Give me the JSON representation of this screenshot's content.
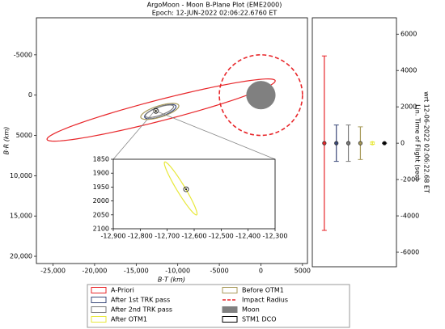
{
  "chart_data": [
    {
      "type": "ellipse",
      "title": "ArgoMoon - Moon B-Plane Plot (EME2000)",
      "subtitle": "Epoch: 12-JUN-2022 02:06:22.6760 ET",
      "xlabel": "B·T (km)",
      "ylabel": "B·R (km)",
      "y_inverted": true,
      "xlim": [
        -27000,
        5600
      ],
      "ylim": [
        -9600,
        20900
      ],
      "xticks": [
        {
          "value": -25000,
          "label": "-25,000"
        },
        {
          "value": -20000,
          "label": "-20,000"
        },
        {
          "value": -15000,
          "label": "-15,000"
        },
        {
          "value": -10000,
          "label": "-10,000"
        },
        -5000,
        0,
        5000
      ],
      "yticks": [
        -5000,
        0,
        5000,
        {
          "value": 10000,
          "label": "10,000"
        },
        {
          "value": 15000,
          "label": "15,000"
        },
        {
          "value": 20000,
          "label": "20,000"
        }
      ],
      "legend": "below",
      "series": [
        {
          "name": "A-Priori",
          "color": "#e8262a",
          "center": [
            -12000,
            1850
          ],
          "axes": [
            14200,
            1300
          ],
          "angle": -14.9
        },
        {
          "name": "After 1st TRK pass",
          "color": "#3b4a7a",
          "center": [
            -12100,
            2050
          ],
          "axes": [
            2000,
            600
          ],
          "angle": -20
        },
        {
          "name": "After 2nd TRK pass",
          "color": "#7a7a7a",
          "center": [
            -12200,
            2000
          ],
          "axes": [
            1800,
            500
          ],
          "angle": -20
        },
        {
          "name": "After OTM1",
          "color": "#e8e83a",
          "center": [
            -12650,
            1955
          ],
          "axes": [
            112,
            15
          ],
          "angle": 58
        },
        {
          "name": "Before OTM1",
          "color": "#a89a5a",
          "center": [
            -12160,
            2020
          ],
          "axes": [
            2400,
            700
          ],
          "angle": -18
        },
        {
          "name": "Impact Radius",
          "color": "#e8262a",
          "center": [
            0,
            0
          ],
          "radius": 5000,
          "dashed": true
        },
        {
          "name": "Moon",
          "color": "#808080",
          "center": [
            0,
            0
          ],
          "radius": 1737,
          "filled": true
        },
        {
          "name": "STM1 DCO",
          "color": "#000000",
          "center": [
            -12630,
            1958
          ]
        }
      ]
    },
    {
      "type": "ellipse",
      "y_inverted": true,
      "xlim": [
        -12900,
        -12300
      ],
      "ylim": [
        1850,
        2100
      ],
      "xticks": [
        {
          "value": -12900,
          "label": "-12,900"
        },
        {
          "value": -12800,
          "label": "-12,800"
        },
        {
          "value": -12700,
          "label": "-12,700"
        },
        {
          "value": -12600,
          "label": "-12,600"
        },
        {
          "value": -12500,
          "label": "-12,500"
        },
        {
          "value": -12400,
          "label": "-12,400"
        },
        {
          "value": -12300,
          "label": "-12,300"
        }
      ],
      "yticks": [
        1850,
        1900,
        1950,
        2000,
        2050,
        2100
      ],
      "series": [
        {
          "color": "#e8e83a",
          "center": [
            -12650,
            1955
          ],
          "axes": [
            112,
            15
          ],
          "angle": 58
        },
        {
          "color": "#000000",
          "center": [
            -12630,
            1958
          ]
        }
      ]
    },
    {
      "type": "errorbar",
      "ylabel": [
        "Lin. Time of Flight (sec)",
        "wrt 12-06-2022 02:06:22.68 ET"
      ],
      "xlim": [
        0,
        7
      ],
      "x": [
        1,
        2,
        3,
        4,
        5,
        6
      ],
      "values": [
        0,
        0,
        0,
        0,
        0,
        0
      ],
      "errors": [
        4800,
        1000,
        1000,
        900,
        60,
        0
      ],
      "colors": [
        "#e8262a",
        "#3b4a7a",
        "#7a7a7a",
        "#a89a5a",
        "#e8e83a",
        "#000000"
      ],
      "ylim": [
        -6800,
        6900
      ],
      "yticks": [
        -6000,
        -4000,
        -2000,
        0,
        2000,
        4000,
        6000
      ]
    }
  ]
}
